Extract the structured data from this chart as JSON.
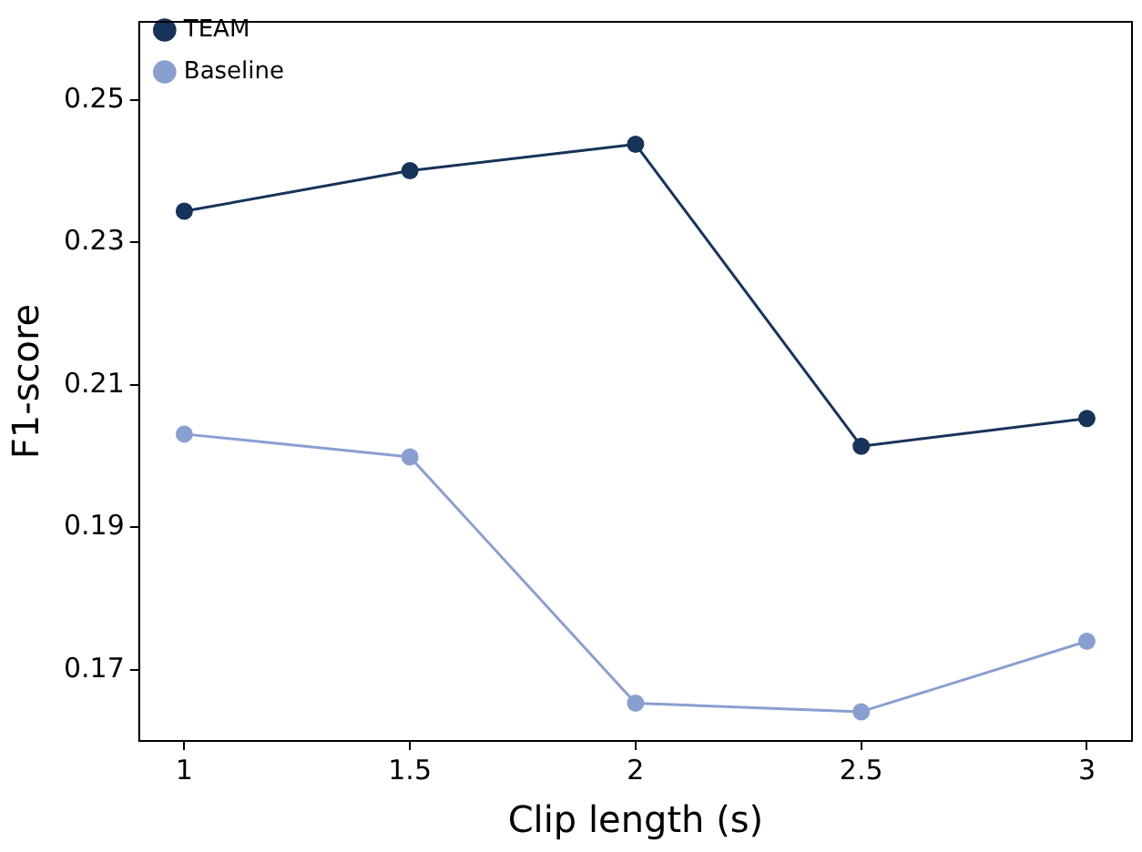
{
  "chart_data": {
    "type": "line",
    "xlabel": "Clip length (s)",
    "ylabel": "F1-score",
    "x": [
      1,
      1.5,
      2,
      2.5,
      3
    ],
    "series": [
      {
        "name": "TEAM",
        "color": "#17335a",
        "values": [
          0.2344,
          0.2401,
          0.2438,
          0.2014,
          0.2053
        ]
      },
      {
        "name": "Baseline",
        "color": "#8a9fd1",
        "values": [
          0.2031,
          0.1999,
          0.1653,
          0.1641,
          0.174
        ]
      }
    ],
    "xlim": [
      0.9,
      3.1
    ],
    "xticks": [
      1,
      1.5,
      2,
      2.5,
      3
    ],
    "ylim": [
      0.16,
      0.261
    ],
    "yticks": [
      0.17,
      0.19,
      0.21,
      0.23,
      0.25
    ],
    "grid": false,
    "legend": "top left",
    "marker": "circle",
    "line_style": "solid"
  }
}
